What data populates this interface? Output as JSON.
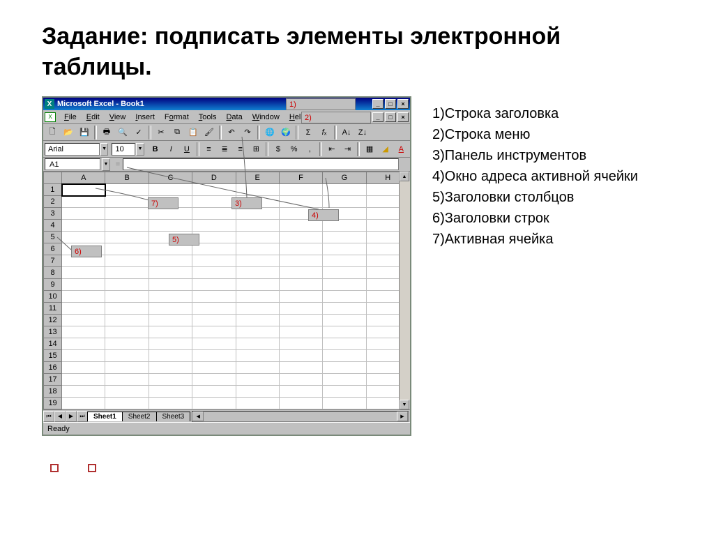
{
  "title_bold": "Задание:",
  "title_rest": " подписать элементы электронной таблицы.",
  "excel": {
    "titlebar": "Microsoft Excel - Book1",
    "menus": [
      "File",
      "Edit",
      "View",
      "Insert",
      "Format",
      "Tools",
      "Data",
      "Window",
      "Help"
    ],
    "font_name": "Arial",
    "font_size": "10",
    "namebox": "A1",
    "columns": [
      "A",
      "B",
      "C",
      "D",
      "E",
      "F",
      "G",
      "H"
    ],
    "row_count": 19,
    "sheets": [
      "Sheet1",
      "Sheet2",
      "Sheet3"
    ],
    "status": "Ready"
  },
  "callouts": {
    "c1": "1)",
    "c2": "2)",
    "c3": "3)",
    "c4": "4)",
    "c5": "5)",
    "c6": "6)",
    "c7": "7)"
  },
  "answers": [
    "1)Строка заголовка",
    "2)Строка меню",
    "3)Панель инструментов",
    "4)Окно адреса активной ячейки",
    "5)Заголовки столбцов",
    "6)Заголовки строк",
    "7)Активная ячейка"
  ],
  "win_icons": {
    "min": "_",
    "max": "□",
    "close": "×"
  }
}
